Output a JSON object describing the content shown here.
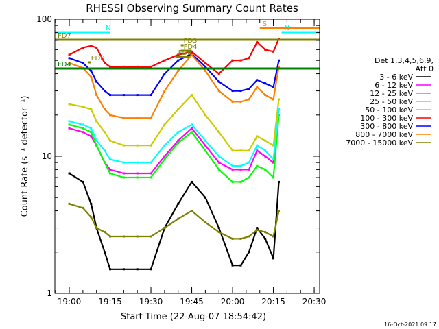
{
  "chart_data": {
    "type": "line",
    "title": "RHESSI Observing Summary Count Rates",
    "xlabel": "Start Time (22-Aug-07 18:54:42)",
    "ylabel": "Count Rate (s⁻¹ detector⁻¹)",
    "y_scale": "log",
    "ylim": [
      1,
      100
    ],
    "xlim": [
      "18:54:42",
      "20:32:00"
    ],
    "x_ticks": [
      "19:00",
      "19:15",
      "19:30",
      "19:45",
      "20:00",
      "20:15",
      "20:30"
    ],
    "y_ticks": [
      "1",
      "10",
      "100"
    ],
    "x": [
      "19:00",
      "19:05",
      "19:08",
      "19:10",
      "19:13",
      "19:15",
      "19:20",
      "19:25",
      "19:30",
      "19:35",
      "19:40",
      "19:45",
      "19:50",
      "19:55",
      "20:00",
      "20:03",
      "20:06",
      "20:09",
      "20:12",
      "20:15",
      "20:17"
    ],
    "series": [
      {
        "name": "3 - 6 keV",
        "color": "#000000",
        "values": [
          7.5,
          6.5,
          4.5,
          3,
          2,
          1.5,
          1.5,
          1.5,
          1.5,
          3,
          4.5,
          6.5,
          5,
          3,
          1.6,
          1.6,
          2,
          3,
          2.5,
          1.8,
          6.5
        ]
      },
      {
        "name": "6 - 12 keV",
        "color": "#ff00ff",
        "values": [
          16,
          15,
          14,
          12,
          9,
          8,
          7.5,
          7.5,
          7.5,
          10,
          13,
          16,
          12,
          9,
          8,
          8,
          8,
          11,
          10,
          9,
          22
        ]
      },
      {
        "name": "12 - 25 keV",
        "color": "#00ff00",
        "values": [
          17,
          16,
          15,
          12,
          9,
          7.5,
          7,
          7,
          7,
          9.5,
          12.5,
          15,
          11,
          8,
          6.5,
          6.5,
          7,
          8.5,
          8,
          7,
          20
        ]
      },
      {
        "name": "25 - 50 keV",
        "color": "#00ffff",
        "values": [
          18,
          17,
          16,
          13,
          11,
          9.5,
          9,
          9,
          9,
          12,
          15,
          17,
          13,
          10,
          8.5,
          8.5,
          9,
          12,
          11,
          9.5,
          22
        ]
      },
      {
        "name": "50 - 100 keV",
        "color": "#cccc00",
        "values": [
          24,
          23,
          22,
          18,
          15,
          13,
          12,
          12,
          12,
          17,
          22,
          28,
          20,
          15,
          11,
          11,
          11,
          14,
          13,
          12,
          26
        ]
      },
      {
        "name": "100 - 300 keV",
        "color": "#ff0000",
        "values": [
          55,
          62,
          64,
          62,
          48,
          45,
          45,
          45,
          45,
          50,
          55,
          58,
          48,
          40,
          50,
          50,
          52,
          68,
          60,
          58,
          72
        ]
      },
      {
        "name": "300 - 800 keV",
        "color": "#0000ff",
        "values": [
          52,
          48,
          42,
          35,
          30,
          28,
          28,
          28,
          28,
          40,
          50,
          56,
          45,
          35,
          30,
          30,
          31,
          36,
          34,
          32,
          50
        ]
      },
      {
        "name": "800 - 7000 keV",
        "color": "#ff8000",
        "values": [
          48,
          44,
          38,
          28,
          22,
          20,
          19,
          19,
          19,
          30,
          42,
          55,
          42,
          30,
          25,
          25,
          26,
          32,
          28,
          26,
          45
        ]
      },
      {
        "name": "7000 - 15000 keV",
        "color": "#808000",
        "values": [
          4.5,
          4.2,
          3.6,
          3.0,
          2.8,
          2.6,
          2.6,
          2.6,
          2.6,
          3.0,
          3.5,
          4.0,
          3.3,
          2.8,
          2.5,
          2.5,
          2.6,
          2.9,
          2.8,
          2.6,
          4.0
        ]
      }
    ],
    "legend": {
      "header": [
        "Det 1,3,4,5,6,9,",
        "Att 0"
      ],
      "placement": "right"
    },
    "flag_bars": [
      {
        "label": "N",
        "color": "#00ffff",
        "start": "18:54:42",
        "end": "19:15"
      },
      {
        "label": "N",
        "color": "#00ffff",
        "start": "20:18",
        "end": "20:32"
      },
      {
        "label": "S",
        "color": "#ff8000",
        "start": "20:10",
        "end": "20:32"
      },
      {
        "label": "FD7",
        "color": "#808000",
        "start": "18:54:42",
        "end": "20:32"
      },
      {
        "label": "FD3",
        "color": "#808000",
        "start": "19:41",
        "end": "19:42"
      },
      {
        "label": "FD4",
        "color": "#808000",
        "start": "19:41",
        "end": "19:45"
      },
      {
        "label": "FD6",
        "color": "#808000",
        "start": "19:39",
        "end": "19:44"
      },
      {
        "label": "FD0",
        "color": "#808000",
        "start": "19:07",
        "end": "19:08"
      },
      {
        "label": "FD4",
        "color": "#008000",
        "start": "18:54:42",
        "end": "20:32"
      }
    ],
    "grid": false
  },
  "footer_date": "16-Oct-2021 09:17"
}
